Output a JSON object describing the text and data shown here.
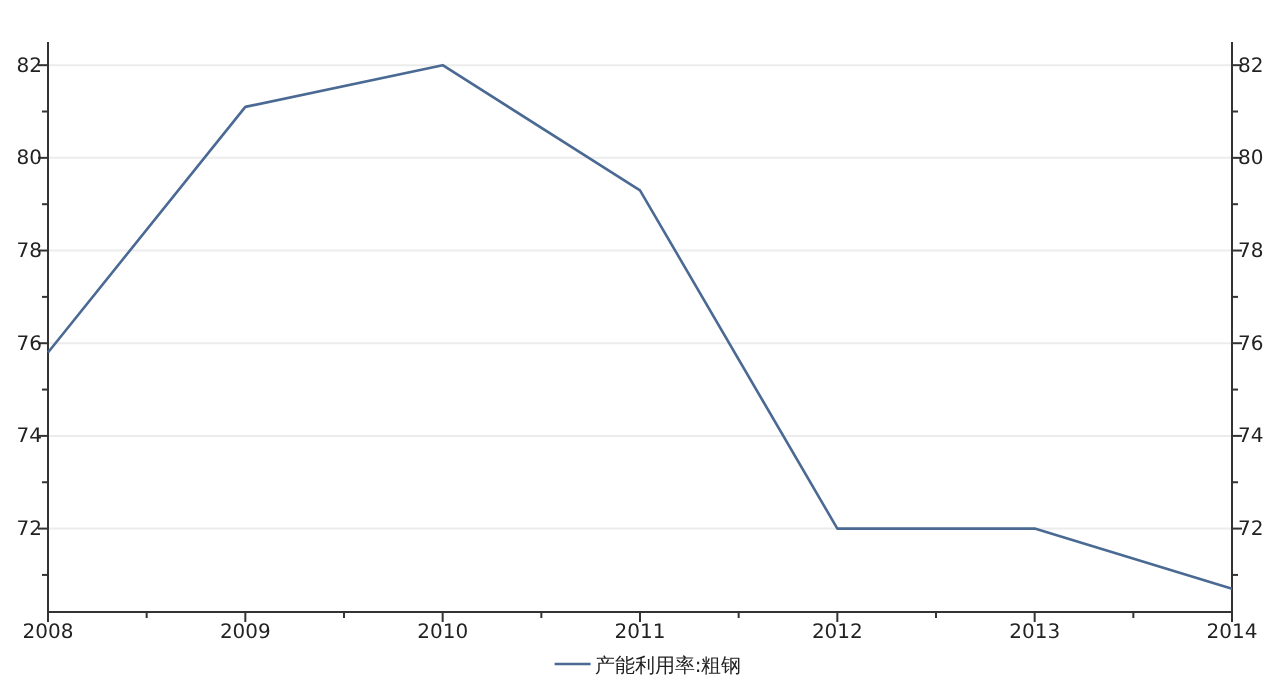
{
  "chart_data": {
    "type": "line",
    "x": [
      2008,
      2009,
      2010,
      2011,
      2012,
      2013,
      2014
    ],
    "series": [
      {
        "name": "产能利用率:粗钢",
        "color": "#4a6a93",
        "values": [
          75.8,
          81.1,
          82.0,
          79.3,
          72.0,
          72.0,
          70.7
        ]
      }
    ],
    "xlim": [
      2008,
      2014
    ],
    "xticks": [
      2008,
      {
        "value": 2008.5,
        "label": null
      },
      2009,
      {
        "value": 2009.5,
        "label": null
      },
      2010,
      {
        "value": 2010.5,
        "label": null
      },
      2011,
      {
        "value": 2011.5,
        "label": null
      },
      2012,
      {
        "value": 2012.5,
        "label": null
      },
      2013,
      {
        "value": 2013.5,
        "label": null
      },
      2014
    ],
    "ylim": [
      70.2,
      82.5
    ],
    "yticks": [
      {
        "value": 71,
        "label": null
      },
      72,
      {
        "value": 73,
        "label": null
      },
      74,
      {
        "value": 75,
        "label": null
      },
      76,
      {
        "value": 77,
        "label": null
      },
      78,
      {
        "value": 79,
        "label": null
      },
      80,
      {
        "value": 81,
        "label": null
      },
      82
    ],
    "y2lim": [
      70.2,
      82.5
    ],
    "y2ticks": [
      {
        "value": 71,
        "label": null
      },
      72,
      {
        "value": 73,
        "label": null
      },
      74,
      {
        "value": 75,
        "label": null
      },
      76,
      {
        "value": 77,
        "label": null
      },
      78,
      {
        "value": 79,
        "label": null
      },
      80,
      {
        "value": 81,
        "label": null
      },
      82
    ],
    "grid": "y",
    "legend": "bottom",
    "marker": "none",
    "line_style": "solid"
  }
}
